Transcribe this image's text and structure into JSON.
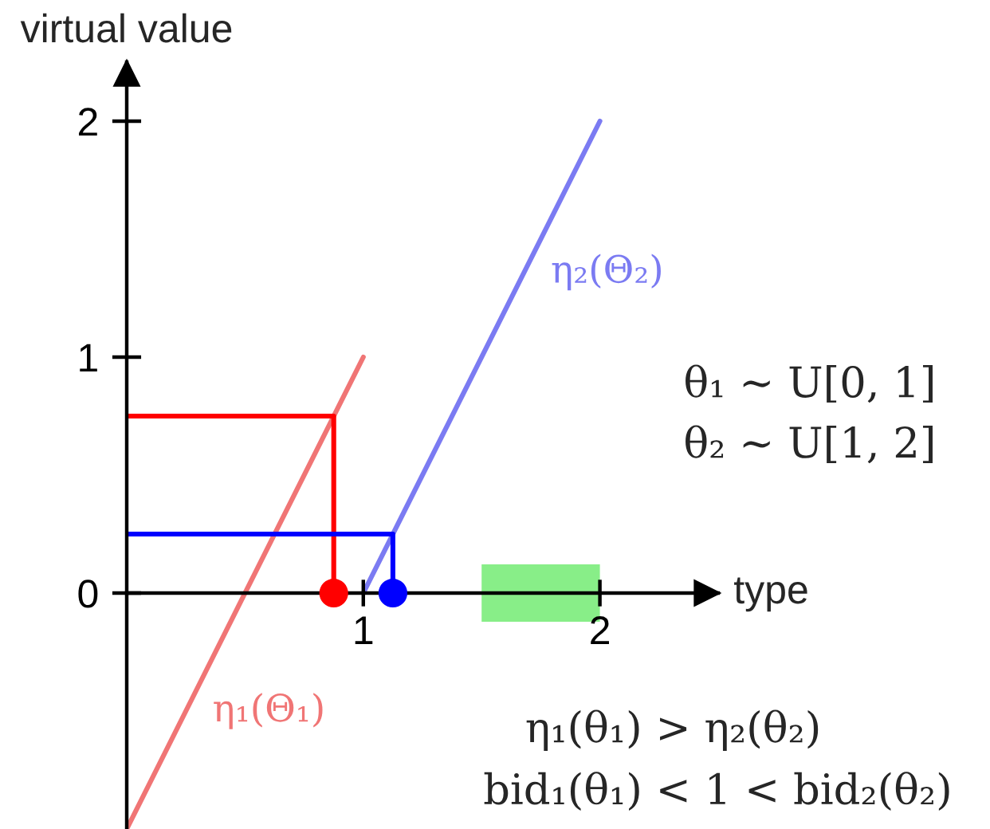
{
  "chart_data": {
    "type": "line",
    "xlabel": "type",
    "ylabel": "virtual value",
    "annotations": [
      "θ₁ ∼ U[0, 1]",
      "θ₂ ∼ U[1, 2]",
      "η₁(θ₁) > η₂(θ₂)",
      "bid₁(θ₁) < 1 < bid₂(θ₂)"
    ],
    "series": [
      {
        "name": "η₁(Θ₁)",
        "color": "#f07575",
        "x": [
          0,
          1
        ],
        "values": [
          -1,
          1
        ]
      },
      {
        "name": "η₂(Θ₂)",
        "color": "#7b7bf2",
        "x": [
          1,
          2
        ],
        "values": [
          0,
          2
        ]
      },
      {
        "color": "#ff0000",
        "x": [
          0,
          0.875,
          0.875
        ],
        "values": [
          0.75,
          0.75,
          0
        ]
      },
      {
        "color": "#0000ff",
        "x": [
          0,
          1.125,
          1.125
        ],
        "values": [
          0.25,
          0.25,
          0
        ]
      },
      {
        "type": "scatter",
        "marker": "circle",
        "color": "#ff0000",
        "x": [
          0.875
        ],
        "values": [
          0
        ]
      },
      {
        "type": "scatter",
        "marker": "circle",
        "color": "#0000ff",
        "x": [
          1.125
        ],
        "values": [
          0
        ]
      }
    ],
    "bands": [
      {
        "axis": "x",
        "from": 1.5,
        "to": 2,
        "color": "#88ee88"
      }
    ],
    "xlim": [
      0,
      2.5
    ],
    "ylim": [
      -1,
      2.25
    ],
    "xticks": [
      1,
      2
    ],
    "yticks": [
      0,
      1,
      2
    ]
  }
}
